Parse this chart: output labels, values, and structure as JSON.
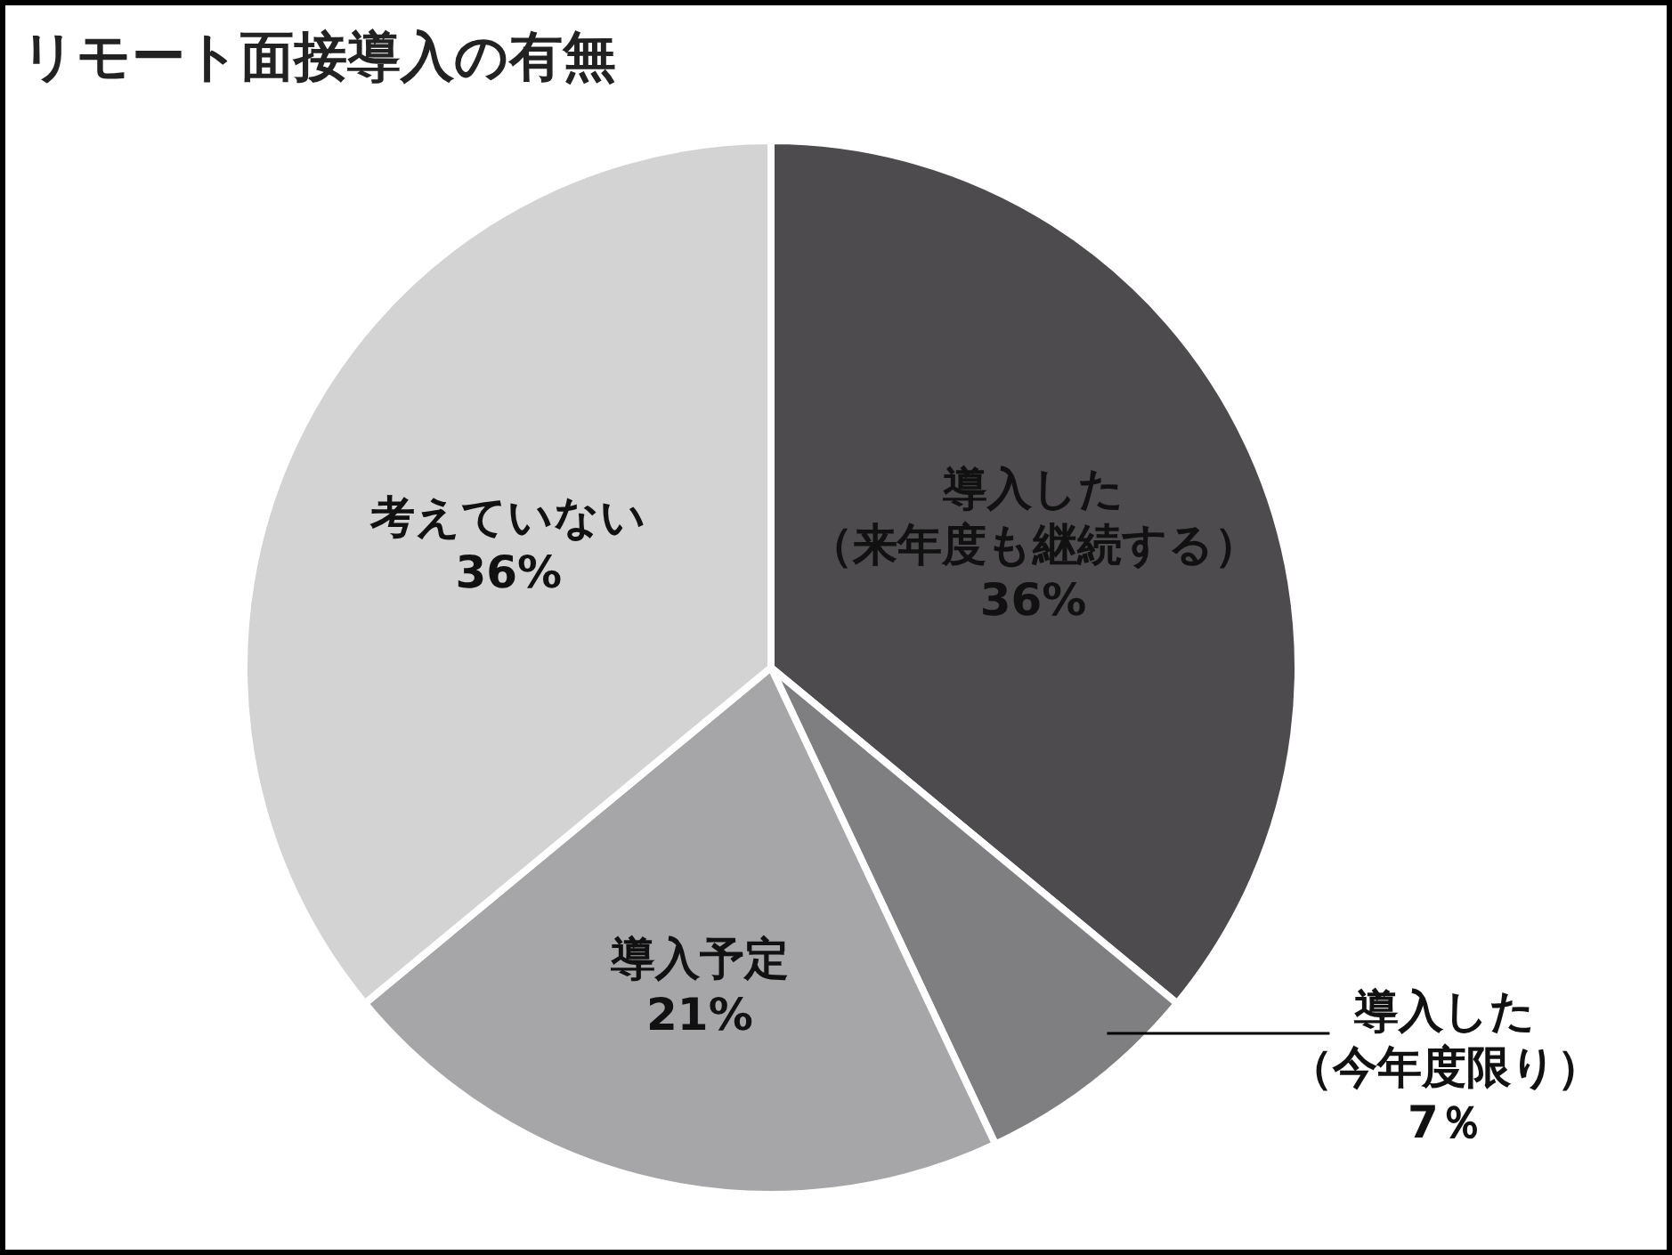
{
  "chart_data": {
    "type": "pie",
    "title": "リモート面接導入の有無",
    "categories": [
      "導入した（来年度も継続する）",
      "導入した（今年度限り）",
      "導入予定",
      "考えていない"
    ],
    "values": [
      36,
      7,
      21,
      36
    ],
    "value_labels": [
      "36%",
      "7％",
      "21%",
      "36%"
    ],
    "colors": [
      "#4d4b4d",
      "#7f7e80",
      "#a6a5a7",
      "#d4d3d4"
    ],
    "legend": false
  }
}
